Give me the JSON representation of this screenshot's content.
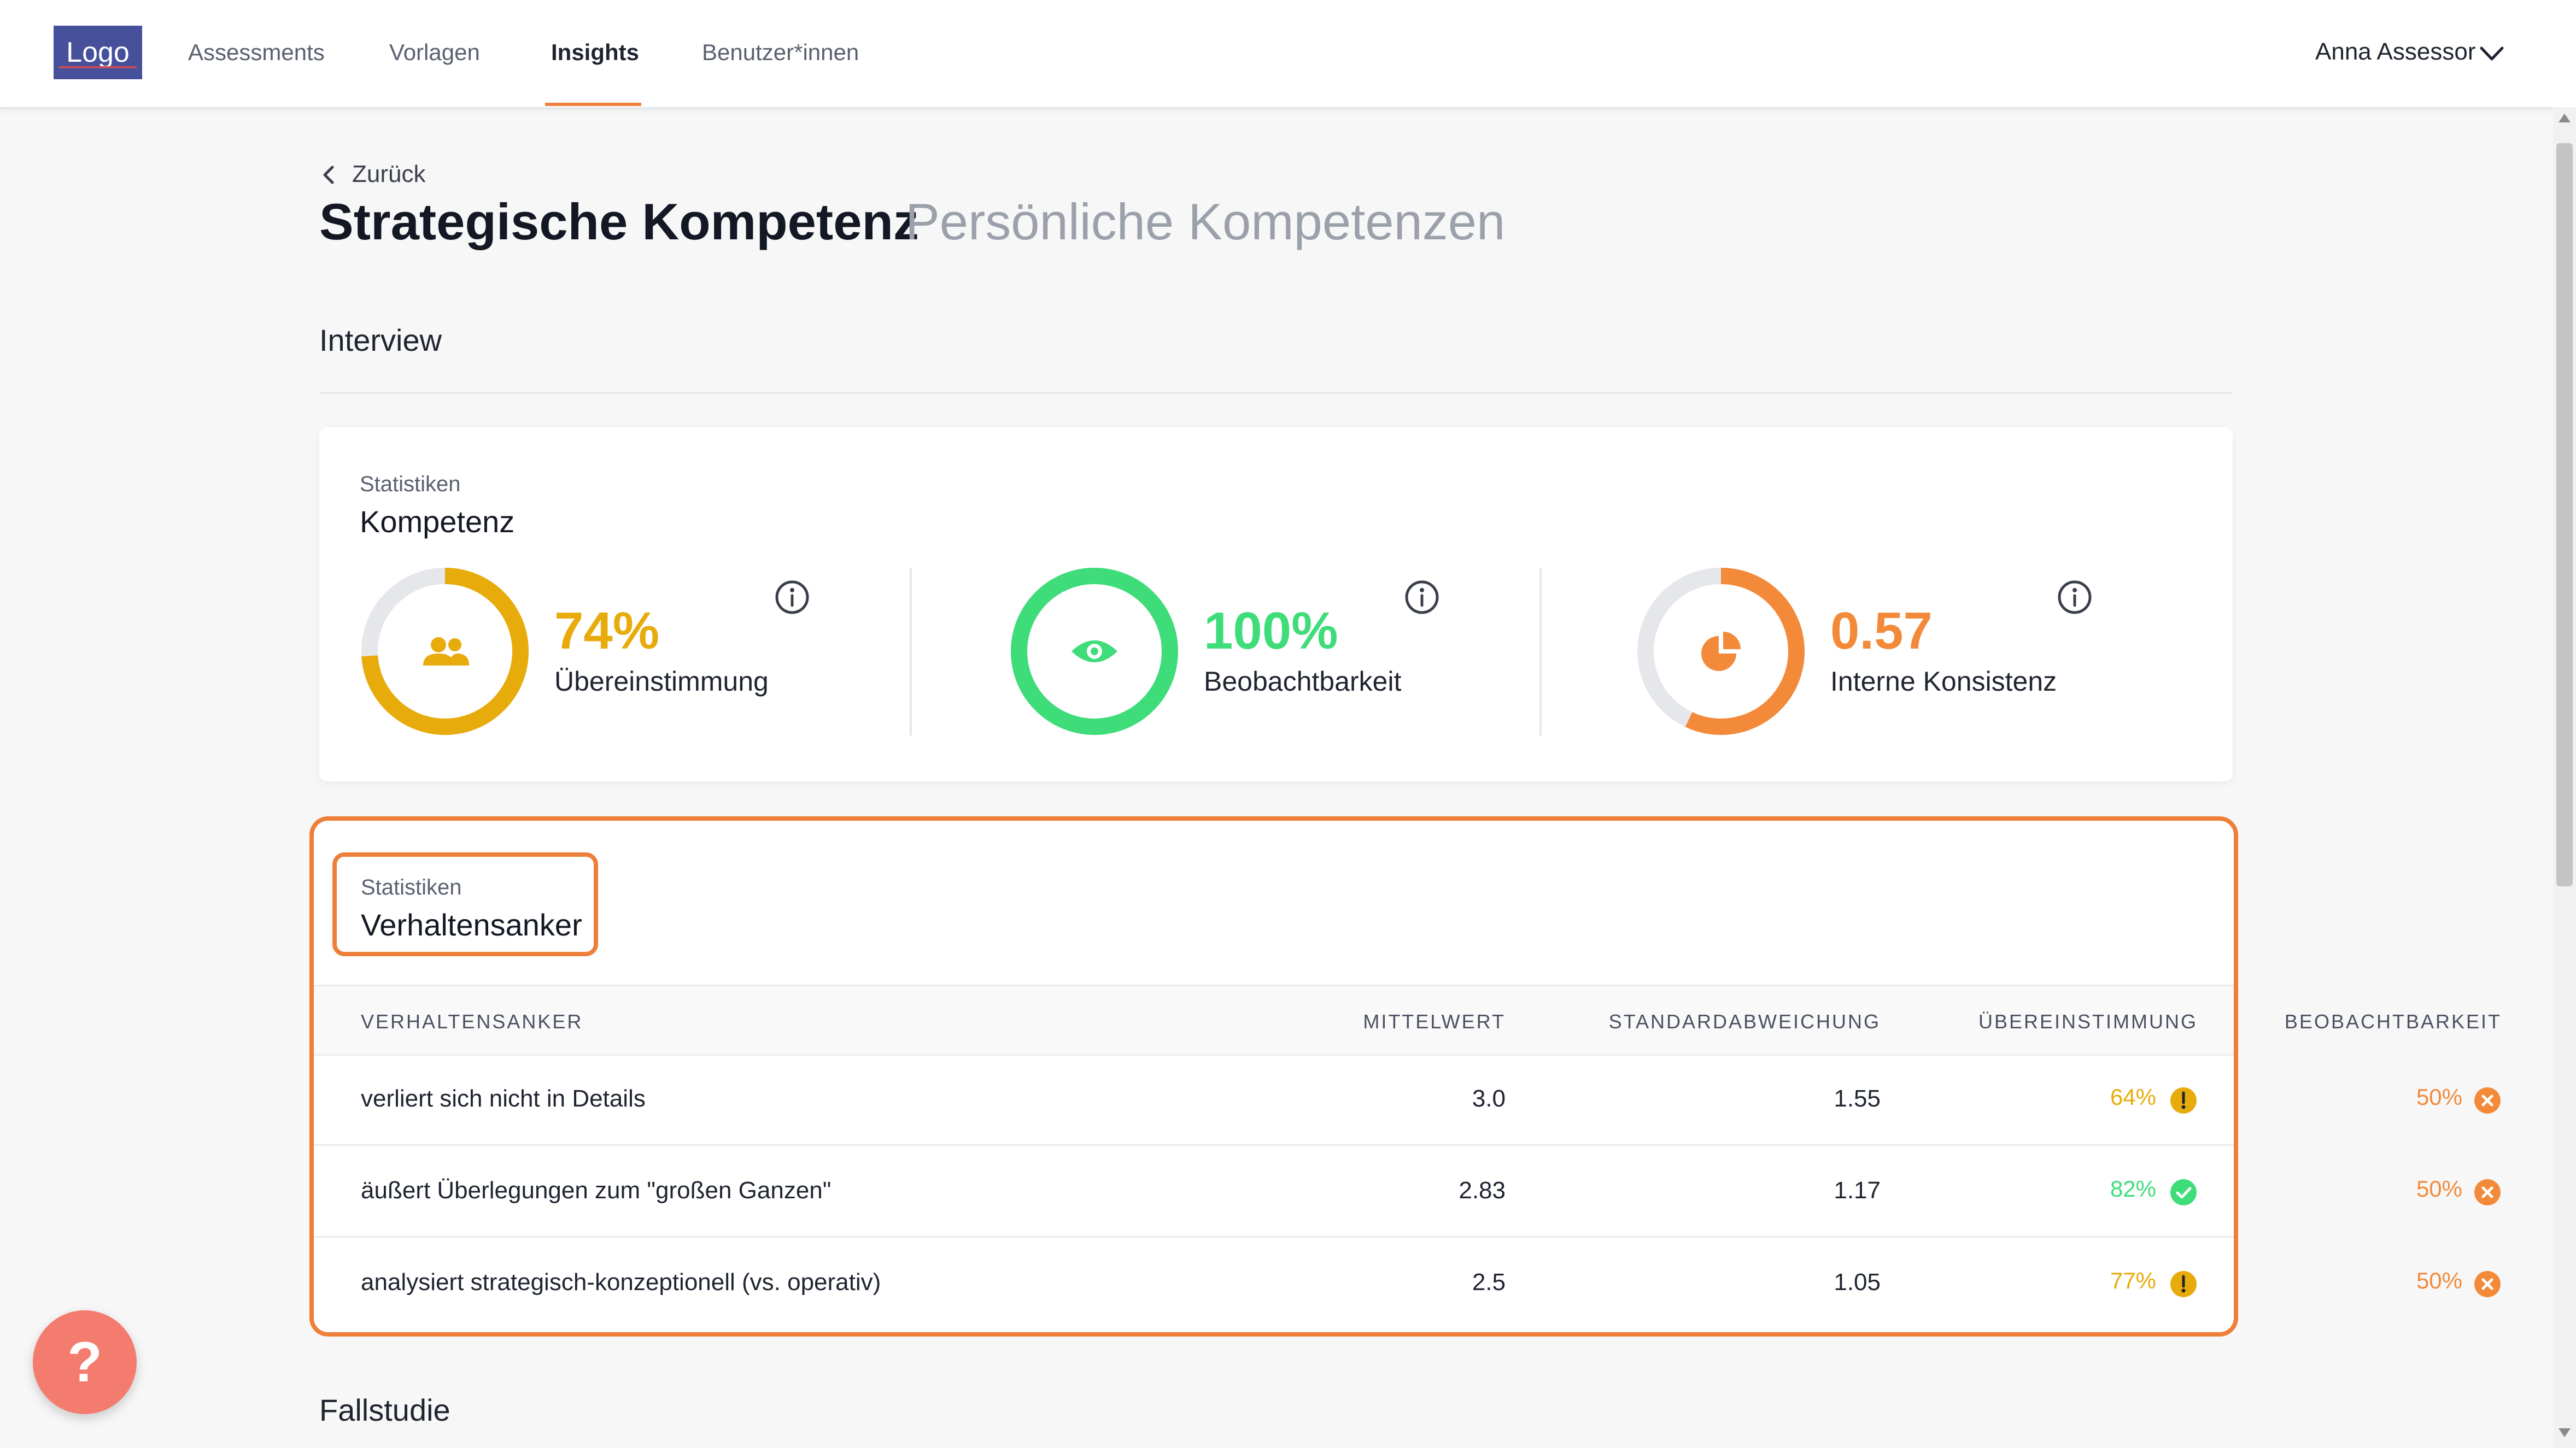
{
  "nav": {
    "logo": "Logo",
    "items": [
      "Assessments",
      "Vorlagen",
      "Insights",
      "Benutzer*innen"
    ],
    "active": "Insights",
    "user": "Anna Assessor"
  },
  "header": {
    "back": "Zurück",
    "title": "Strategische Kompetenz",
    "subtitle": "Persönliche Kompetenzen",
    "section": "Interview"
  },
  "competency_card": {
    "kicker": "Statistiken",
    "title": "Kompetenz",
    "stats": [
      {
        "value": "74%",
        "label": "Übereinstimmung",
        "color": "#e8ab0c",
        "fraction": 0.74,
        "icon": "users-icon"
      },
      {
        "value": "100%",
        "label": "Beobachtbarkeit",
        "color": "#3fdc7a",
        "fraction": 1.0,
        "icon": "eye-icon"
      },
      {
        "value": "0.57",
        "label": "Interne Konsistenz",
        "color": "#f28a3a",
        "fraction": 0.57,
        "icon": "pie-chart-icon"
      }
    ]
  },
  "anchor_card": {
    "kicker": "Statistiken",
    "title": "Verhaltensanker",
    "columns": [
      "VERHALTENSANKER",
      "MITTELWERT",
      "STANDARDABWEICHUNG",
      "ÜBEREINSTIMMUNG",
      "BEOBACHTBARKEIT"
    ],
    "rows": [
      {
        "anchor": "verliert sich nicht in Details",
        "mean": "3.0",
        "sd": "1.55",
        "agreement": "64%",
        "agreement_status": "warning",
        "observability": "50%",
        "observability_status": "error"
      },
      {
        "anchor": "äußert Überlegungen zum \"großen Ganzen\"",
        "mean": "2.83",
        "sd": "1.17",
        "agreement": "82%",
        "agreement_status": "success",
        "observability": "50%",
        "observability_status": "error"
      },
      {
        "anchor": "analysiert strategisch-konzeptionell (vs. operativ)",
        "mean": "2.5",
        "sd": "1.05",
        "agreement": "77%",
        "agreement_status": "warning",
        "observability": "50%",
        "observability_status": "error"
      }
    ]
  },
  "next_section": "Fallstudie",
  "help": "?",
  "colors": {
    "accent": "#ee7f3a",
    "warning": "#e8ab0c",
    "success": "#3fdc7a",
    "error": "#f28a3a"
  }
}
